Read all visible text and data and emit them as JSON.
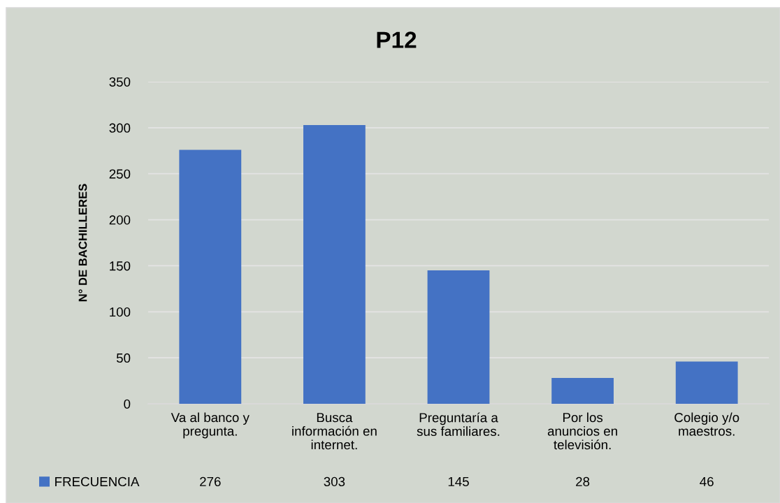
{
  "chart_data": {
    "type": "bar",
    "title": "P12",
    "ylabel": "N° DE BACHILLERES",
    "categories": [
      "Va al banco y\npregunta.",
      "Busca\ninformación en\ninternet.",
      "Preguntaría a\nsus familiares.",
      "Por los\nanuncios en\ntelevisión.",
      "Colegio y/o\nmaestros."
    ],
    "series": [
      {
        "name": "FRECUENCIA",
        "color": "#4472c4",
        "values": [
          276,
          303,
          145,
          28,
          46
        ]
      }
    ],
    "ylim": [
      0,
      350
    ],
    "yticks": [
      0,
      50,
      100,
      150,
      200,
      250,
      300,
      350
    ],
    "grid": "y",
    "legend": "bottom",
    "data_labels": true
  }
}
